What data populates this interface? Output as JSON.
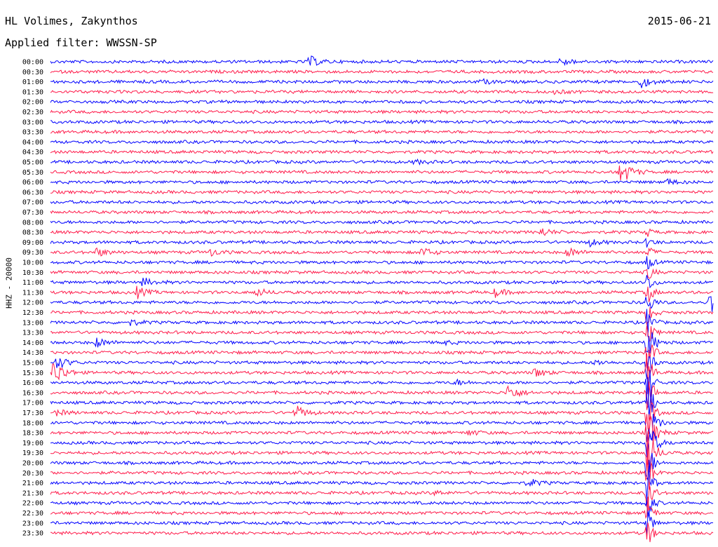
{
  "header": {
    "station": "HL Volimes, Zakynthos",
    "date": "2015-06-21",
    "filter": "Applied filter: WWSSN-SP"
  },
  "chart_data": {
    "type": "line",
    "ylabel": "HHZ - 20000",
    "row_labels": [
      "00:00",
      "00:30",
      "01:00",
      "01:30",
      "02:00",
      "02:30",
      "03:00",
      "03:30",
      "04:00",
      "04:30",
      "05:00",
      "05:30",
      "06:00",
      "06:30",
      "07:00",
      "07:30",
      "08:00",
      "08:30",
      "09:00",
      "09:30",
      "10:00",
      "10:30",
      "11:00",
      "11:30",
      "12:00",
      "12:30",
      "13:00",
      "13:30",
      "14:00",
      "14:30",
      "15:00",
      "15:30",
      "16:00",
      "16:30",
      "17:00",
      "17:30",
      "18:00",
      "18:30",
      "19:00",
      "19:30",
      "20:00",
      "20:30",
      "21:00",
      "21:30",
      "22:00",
      "22:30",
      "23:00",
      "23:30"
    ],
    "colors": [
      "#0000ff",
      "#ff1a4a"
    ],
    "grid": false,
    "noise_amplitude": 2.5,
    "events": [
      {
        "row": 0,
        "x": 0.39,
        "amp": 8
      },
      {
        "row": 0,
        "x": 0.77,
        "amp": 6
      },
      {
        "row": 2,
        "x": 0.89,
        "amp": 8
      },
      {
        "row": 2,
        "x": 0.65,
        "amp": 3
      },
      {
        "row": 3,
        "x": 0.76,
        "amp": 3
      },
      {
        "row": 10,
        "x": 0.55,
        "amp": 3
      },
      {
        "row": 11,
        "x": 0.86,
        "amp": 18
      },
      {
        "row": 12,
        "x": 0.93,
        "amp": 4
      },
      {
        "row": 17,
        "x": 0.74,
        "amp": 6
      },
      {
        "row": 18,
        "x": 0.81,
        "amp": 6
      },
      {
        "row": 19,
        "x": 0.07,
        "amp": 6
      },
      {
        "row": 19,
        "x": 0.24,
        "amp": 5
      },
      {
        "row": 19,
        "x": 0.56,
        "amp": 7
      },
      {
        "row": 19,
        "x": 0.78,
        "amp": 7
      },
      {
        "row": 22,
        "x": 0.14,
        "amp": 6
      },
      {
        "row": 23,
        "x": 0.13,
        "amp": 8
      },
      {
        "row": 23,
        "x": 0.31,
        "amp": 6
      },
      {
        "row": 23,
        "x": 0.67,
        "amp": 6
      },
      {
        "row": 24,
        "x": 0.995,
        "amp": 20
      },
      {
        "row": 26,
        "x": 0.12,
        "amp": 4
      },
      {
        "row": 28,
        "x": 0.07,
        "amp": 7
      },
      {
        "row": 28,
        "x": 0.9,
        "amp": 8
      },
      {
        "row": 28,
        "x": 0.59,
        "amp": 3
      },
      {
        "row": 30,
        "x": 0.01,
        "amp": 10
      },
      {
        "row": 30,
        "x": 0.82,
        "amp": 4
      },
      {
        "row": 31,
        "x": 0.005,
        "amp": 20
      },
      {
        "row": 31,
        "x": 0.73,
        "amp": 7
      },
      {
        "row": 32,
        "x": 0.61,
        "amp": 4
      },
      {
        "row": 33,
        "x": 0.69,
        "amp": 12
      },
      {
        "row": 35,
        "x": 0.37,
        "amp": 10
      },
      {
        "row": 35,
        "x": 0.01,
        "amp": 4
      },
      {
        "row": 37,
        "x": 0.63,
        "amp": 4
      },
      {
        "row": 42,
        "x": 0.72,
        "amp": 6
      },
      {
        "row": 43,
        "x": 0.58,
        "amp": 3
      }
    ],
    "big_event": {
      "x": 0.9,
      "start_row": 17,
      "end_row": 47,
      "peak_row": 38
    }
  }
}
